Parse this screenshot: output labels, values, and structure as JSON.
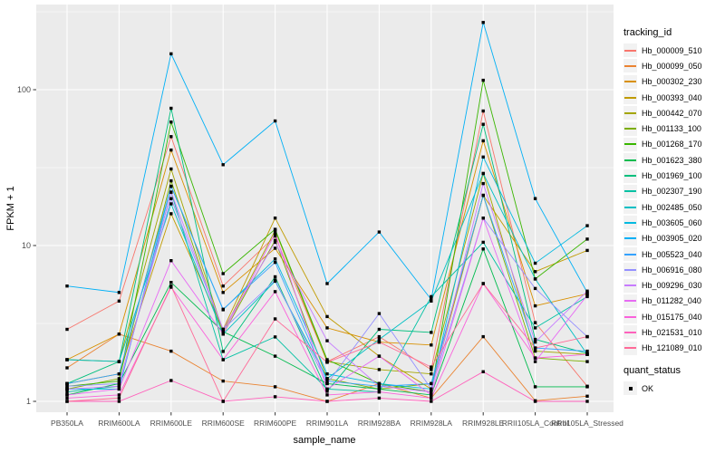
{
  "chart_data": {
    "type": "line",
    "title": "",
    "xlabel": "sample_name",
    "ylabel": "FPKM + 1",
    "y_scale": "log10",
    "y_ticks": [
      1,
      10,
      100
    ],
    "y_minor_ticks": [
      3.162,
      31.62,
      316.2
    ],
    "ylim": [
      0.85,
      355
    ],
    "grid": "on",
    "panel_bg": "#EBEBEB",
    "grid_color": "#FFFFFF",
    "point_shape": "filled-square",
    "point_color": "#000000",
    "legend_position": "right",
    "categories": [
      "PB350LA",
      "RRIM600LA",
      "RRIM600LE",
      "RRIM600SE",
      "RRIM600PE",
      "RRIM901LA",
      "RRIM928BA",
      "RRIM928LA",
      "RRIM928LE",
      "RRII105LA_Control",
      "RRII105LA_Stressed"
    ],
    "series": [
      {
        "name": "Hb_000009_510",
        "color": "#F8766D",
        "values": [
          2.9,
          4.4,
          50,
          5.5,
          11.5,
          1.8,
          2.6,
          1.6,
          73,
          3.2,
          1.25
        ]
      },
      {
        "name": "Hb_000099_050",
        "color": "#EA8331",
        "values": [
          1.64,
          2.7,
          2.1,
          1.35,
          1.24,
          1.0,
          1.3,
          1.05,
          2.6,
          1.01,
          1.08
        ]
      },
      {
        "name": "Hb_000302_230",
        "color": "#D89000",
        "values": [
          1.85,
          2.7,
          41,
          5.0,
          9.6,
          2.96,
          2.4,
          2.3,
          47,
          4.1,
          4.9
        ]
      },
      {
        "name": "Hb_000393_040",
        "color": "#C09B00",
        "values": [
          1.3,
          1.5,
          16,
          2.9,
          15,
          3.5,
          1.95,
          1.2,
          21,
          6.8,
          9.3
        ]
      },
      {
        "name": "Hb_000442_070",
        "color": "#A3A500",
        "values": [
          1.85,
          1.8,
          31,
          2.8,
          12.5,
          1.8,
          1.6,
          1.5,
          29,
          2.1,
          2.0
        ]
      },
      {
        "name": "Hb_001133_100",
        "color": "#7CAE00",
        "values": [
          1.2,
          1.4,
          26,
          2.7,
          10.8,
          1.4,
          1.2,
          1.3,
          21,
          1.9,
          1.8
        ]
      },
      {
        "name": "Hb_001268_170",
        "color": "#39B600",
        "values": [
          1.25,
          1.35,
          62,
          6.6,
          12.7,
          1.85,
          1.3,
          1.15,
          115,
          6.1,
          11.0
        ]
      },
      {
        "name": "Hb_001623_380",
        "color": "#00BB4E",
        "values": [
          1.1,
          1.3,
          5.8,
          2.8,
          1.95,
          1.3,
          1.2,
          1.1,
          9.5,
          1.24,
          1.24
        ]
      },
      {
        "name": "Hb_001969_100",
        "color": "#00BF7D",
        "values": [
          1.3,
          1.8,
          76,
          2.09,
          6.3,
          1.16,
          2.9,
          2.77,
          60,
          2.5,
          2.03
        ]
      },
      {
        "name": "Hb_002307_190",
        "color": "#00C1A3",
        "values": [
          1.15,
          1.25,
          22,
          1.85,
          2.59,
          1.2,
          1.15,
          4.7,
          10.5,
          2.96,
          4.7
        ]
      },
      {
        "name": "Hb_002485_050",
        "color": "#00BFC4",
        "values": [
          1.85,
          1.8,
          18.5,
          2.7,
          5.9,
          1.4,
          2.5,
          4.4,
          29,
          6.1,
          2.0
        ]
      },
      {
        "name": "Hb_003605_060",
        "color": "#00BAE0",
        "values": [
          1.2,
          1.2,
          24,
          3.87,
          8.2,
          1.5,
          1.3,
          1.2,
          37,
          7.7,
          13.4
        ]
      },
      {
        "name": "Hb_003905_020",
        "color": "#00B0F6",
        "values": [
          5.5,
          5.0,
          170,
          33,
          63,
          5.7,
          12.2,
          4.5,
          270,
          20,
          5.0
        ]
      },
      {
        "name": "Hb_005523_040",
        "color": "#35A2FF",
        "values": [
          1.3,
          1.5,
          24,
          3.9,
          7.8,
          1.35,
          1.25,
          1.3,
          21,
          2.2,
          2.1
        ]
      },
      {
        "name": "Hb_006916_080",
        "color": "#9590FF",
        "values": [
          1.25,
          1.3,
          20,
          2.9,
          6.0,
          1.3,
          3.66,
          1.2,
          15,
          5.3,
          2.6
        ]
      },
      {
        "name": "Hb_009296_030",
        "color": "#C77CFF",
        "values": [
          1.2,
          1.25,
          22,
          2.9,
          10.5,
          2.45,
          1.25,
          1.15,
          25,
          2.4,
          5.1
        ]
      },
      {
        "name": "Hb_011282_040",
        "color": "#E76BF3",
        "values": [
          1.1,
          1.2,
          8.0,
          2.7,
          12.0,
          1.2,
          1.95,
          1.1,
          15,
          1.8,
          4.8
        ]
      },
      {
        "name": "Hb_015175_040",
        "color": "#FA62DB",
        "values": [
          1.05,
          1.1,
          5.4,
          1.85,
          5.06,
          1.1,
          1.15,
          1.05,
          5.7,
          1.9,
          2.0
        ]
      },
      {
        "name": "Hb_021531_010",
        "color": "#FF62BC",
        "values": [
          1.0,
          1.0,
          1.36,
          1.0,
          1.07,
          1.0,
          1.05,
          1.0,
          1.55,
          1.0,
          1.0
        ]
      },
      {
        "name": "Hb_121089_010",
        "color": "#FF6A98",
        "values": [
          1.0,
          1.05,
          5.5,
          1.0,
          3.38,
          1.78,
          2.4,
          1.66,
          5.7,
          2.2,
          2.6
        ]
      }
    ]
  },
  "legend_tracking": {
    "title": "tracking_id"
  },
  "legend_quant": {
    "title": "quant_status",
    "items": [
      {
        "label": "OK"
      }
    ]
  }
}
